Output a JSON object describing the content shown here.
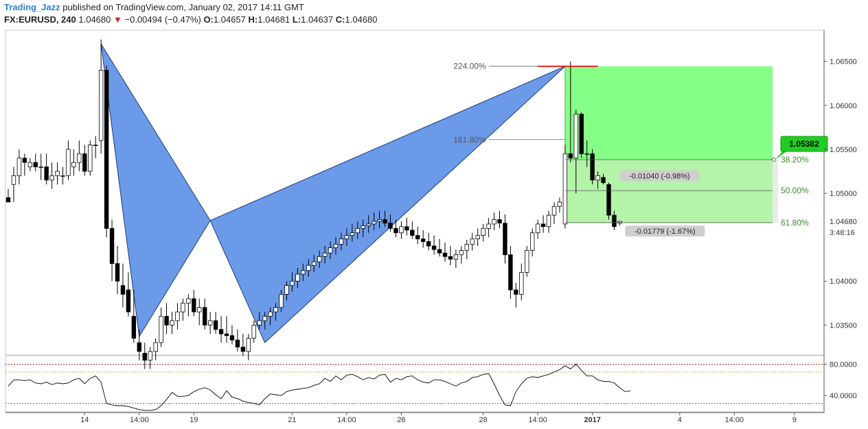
{
  "header": {
    "author": "Trading_Jazz",
    "published": "published on TradingView.com, January 02, 2017 14:11 GMT",
    "symbol": "FX:EURUSD, 240",
    "last": "1.04680",
    "change": "−0.00494 (−0.47%)",
    "o_label": "O:",
    "o": "1.04657",
    "h_label": "H:",
    "h": "1.04681",
    "l_label": "L:",
    "l": "1.04637",
    "c_label": "C:",
    "c": "1.04680",
    "down_arrow": "▼"
  },
  "colors": {
    "pattern_fill": "#6b9ae8",
    "target_zone_dark": "#7fff7f",
    "target_zone_light": "#b4f4a8",
    "candle_down": "#000000",
    "candle_up": "#ffffff",
    "price_tag": "#22cc22",
    "rsi_line": "#000000",
    "red_level": "#e02020"
  },
  "chart_data": {
    "type": "candlestick",
    "title": "",
    "y_axis": {
      "min": 1.033,
      "max": 1.067,
      "ticks": [
        1.065,
        1.06,
        1.055,
        1.05,
        1.04,
        1.035
      ],
      "tick_labels": [
        "1.06500",
        "1.06000",
        "1.05500",
        "1.05000",
        "1.04000",
        "1.03500"
      ],
      "last_price_label": "1.04680",
      "countdown": "3:48:16"
    },
    "x_axis": {
      "labels": [
        {
          "text": "14",
          "bar": 14
        },
        {
          "text": "14:00",
          "bar": 24
        },
        {
          "text": "19",
          "bar": 34
        },
        {
          "text": "21",
          "bar": 52
        },
        {
          "text": "14:00",
          "bar": 62
        },
        {
          "text": "26",
          "bar": 72
        },
        {
          "text": "28",
          "bar": 87
        },
        {
          "text": "14:00",
          "bar": 97
        },
        {
          "text": "2017",
          "bar": 107,
          "bold": true
        },
        {
          "text": "4",
          "bar": 123
        },
        {
          "text": "14:00",
          "bar": 133
        },
        {
          "text": "9",
          "bar": 144
        }
      ]
    },
    "candles": [
      [
        1.0495,
        1.0505,
        1.049,
        1.049
      ],
      [
        1.051,
        1.053,
        1.049,
        1.052
      ],
      [
        1.052,
        1.055,
        1.051,
        1.054
      ],
      [
        1.054,
        1.0545,
        1.052,
        1.0535
      ],
      [
        1.053,
        1.054,
        1.0525,
        1.0535
      ],
      [
        1.0535,
        1.0545,
        1.0525,
        1.053
      ],
      [
        1.053,
        1.0545,
        1.0515,
        1.053
      ],
      [
        1.053,
        1.0545,
        1.051,
        1.0515
      ],
      [
        1.0515,
        1.0535,
        1.0505,
        1.052
      ],
      [
        1.052,
        1.0535,
        1.051,
        1.0525
      ],
      [
        1.052,
        1.053,
        1.051,
        1.052
      ],
      [
        1.052,
        1.056,
        1.0515,
        1.055
      ],
      [
        1.053,
        1.055,
        1.052,
        1.0535
      ],
      [
        1.0535,
        1.056,
        1.0525,
        1.0545
      ],
      [
        1.0545,
        1.0555,
        1.052,
        1.0525
      ],
      [
        1.0525,
        1.056,
        1.052,
        1.0555
      ],
      [
        1.0555,
        1.0565,
        1.054,
        1.0555
      ],
      [
        1.056,
        1.0675,
        1.0545,
        1.064
      ],
      [
        1.064,
        1.0645,
        1.045,
        1.046
      ],
      [
        1.046,
        1.047,
        1.04,
        1.042
      ],
      [
        1.042,
        1.044,
        1.0385,
        1.04
      ],
      [
        1.0395,
        1.042,
        1.037,
        1.0385
      ],
      [
        1.039,
        1.041,
        1.036,
        1.0365
      ],
      [
        1.036,
        1.039,
        1.033,
        1.0335
      ],
      [
        1.033,
        1.0345,
        1.031,
        1.032
      ],
      [
        1.0318,
        1.033,
        1.03,
        1.031
      ],
      [
        1.031,
        1.0325,
        1.03,
        1.032
      ],
      [
        1.032,
        1.0335,
        1.031,
        1.033
      ],
      [
        1.033,
        1.037,
        1.0325,
        1.036
      ],
      [
        1.036,
        1.0375,
        1.034,
        1.035
      ],
      [
        1.035,
        1.0365,
        1.034,
        1.0355
      ],
      [
        1.0355,
        1.0375,
        1.0345,
        1.0365
      ],
      [
        1.0365,
        1.038,
        1.0355,
        1.0375
      ],
      [
        1.0375,
        1.0385,
        1.036,
        1.038
      ],
      [
        1.038,
        1.039,
        1.036,
        1.0365
      ],
      [
        1.0365,
        1.038,
        1.035,
        1.037
      ],
      [
        1.037,
        1.038,
        1.0345,
        1.035
      ],
      [
        1.035,
        1.0365,
        1.034,
        1.0355
      ],
      [
        1.0355,
        1.0365,
        1.034,
        1.0345
      ],
      [
        1.0345,
        1.036,
        1.033,
        1.034
      ],
      [
        1.034,
        1.036,
        1.033,
        1.0338
      ],
      [
        1.0338,
        1.035,
        1.0328,
        1.0333
      ],
      [
        1.0333,
        1.0345,
        1.032,
        1.0325
      ],
      [
        1.0325,
        1.034,
        1.0315,
        1.032
      ],
      [
        1.032,
        1.034,
        1.031,
        1.0335
      ],
      [
        1.0335,
        1.0355,
        1.033,
        1.035
      ],
      [
        1.035,
        1.0365,
        1.0345,
        1.0355
      ],
      [
        1.0355,
        1.0365,
        1.0345,
        1.036
      ],
      [
        1.036,
        1.037,
        1.035,
        1.0365
      ],
      [
        1.0365,
        1.0375,
        1.0355,
        1.037
      ],
      [
        1.037,
        1.039,
        1.0365,
        1.0385
      ],
      [
        1.0385,
        1.04,
        1.0378,
        1.0395
      ],
      [
        1.0395,
        1.041,
        1.0388,
        1.04
      ],
      [
        1.04,
        1.0415,
        1.0392,
        1.0408
      ],
      [
        1.0408,
        1.042,
        1.04,
        1.0412
      ],
      [
        1.0412,
        1.0425,
        1.0405,
        1.0418
      ],
      [
        1.0418,
        1.043,
        1.041,
        1.0422
      ],
      [
        1.0422,
        1.0435,
        1.0415,
        1.0428
      ],
      [
        1.0428,
        1.044,
        1.042,
        1.0432
      ],
      [
        1.0432,
        1.0445,
        1.0425,
        1.0438
      ],
      [
        1.0438,
        1.045,
        1.043,
        1.0442
      ],
      [
        1.0442,
        1.0455,
        1.0435,
        1.0448
      ],
      [
        1.0448,
        1.046,
        1.044,
        1.0452
      ],
      [
        1.0452,
        1.0465,
        1.0445,
        1.0455
      ],
      [
        1.0455,
        1.0468,
        1.0448,
        1.046
      ],
      [
        1.046,
        1.047,
        1.045,
        1.0463
      ],
      [
        1.0463,
        1.0475,
        1.0455,
        1.0465
      ],
      [
        1.0465,
        1.0478,
        1.0458,
        1.0468
      ],
      [
        1.0468,
        1.048,
        1.046,
        1.047
      ],
      [
        1.047,
        1.048,
        1.0462,
        1.0466
      ],
      [
        1.0466,
        1.0476,
        1.0456,
        1.046
      ],
      [
        1.046,
        1.047,
        1.045,
        1.0455
      ],
      [
        1.0455,
        1.0468,
        1.0448,
        1.0462
      ],
      [
        1.0462,
        1.0472,
        1.0452,
        1.0458
      ],
      [
        1.0458,
        1.0468,
        1.0448,
        1.0452
      ],
      [
        1.0452,
        1.0462,
        1.0442,
        1.0448
      ],
      [
        1.0448,
        1.0458,
        1.0438,
        1.0445
      ],
      [
        1.0445,
        1.0455,
        1.0435,
        1.044
      ],
      [
        1.044,
        1.0452,
        1.043,
        1.0436
      ],
      [
        1.0436,
        1.0448,
        1.0428,
        1.0432
      ],
      [
        1.0432,
        1.0444,
        1.0422,
        1.0428
      ],
      [
        1.0428,
        1.044,
        1.0418,
        1.0425
      ],
      [
        1.0425,
        1.0436,
        1.0415,
        1.043
      ],
      [
        1.043,
        1.044,
        1.042,
        1.0435
      ],
      [
        1.0435,
        1.0447,
        1.0425,
        1.0442
      ],
      [
        1.0442,
        1.0455,
        1.0435,
        1.0448
      ],
      [
        1.0448,
        1.046,
        1.044,
        1.0452
      ],
      [
        1.0452,
        1.0465,
        1.0445,
        1.046
      ],
      [
        1.046,
        1.0472,
        1.045,
        1.0465
      ],
      [
        1.0465,
        1.0478,
        1.0458,
        1.047
      ],
      [
        1.047,
        1.048,
        1.046,
        1.0466
      ],
      [
        1.0466,
        1.0476,
        1.042,
        1.043
      ],
      [
        1.043,
        1.044,
        1.038,
        1.039
      ],
      [
        1.039,
        1.0398,
        1.037,
        1.0385
      ],
      [
        1.0385,
        1.042,
        1.0378,
        1.041
      ],
      [
        1.041,
        1.044,
        1.0405,
        1.0435
      ],
      [
        1.0435,
        1.046,
        1.0428,
        1.0455
      ],
      [
        1.0455,
        1.047,
        1.0448,
        1.0465
      ],
      [
        1.0465,
        1.0475,
        1.0455,
        1.0462
      ],
      [
        1.0462,
        1.048,
        1.0455,
        1.0475
      ],
      [
        1.0475,
        1.049,
        1.0465,
        1.0485
      ],
      [
        1.0485,
        1.0495,
        1.0478,
        1.049
      ],
      [
        1.0465,
        1.0555,
        1.046,
        1.0545
      ],
      [
        1.0545,
        1.065,
        1.0535,
        1.054
      ],
      [
        1.054,
        1.0595,
        1.05,
        1.059
      ],
      [
        1.059,
        1.0592,
        1.054,
        1.0545
      ],
      [
        1.0545,
        1.056,
        1.053,
        1.0545
      ],
      [
        1.0545,
        1.055,
        1.051,
        1.0515
      ],
      [
        1.0515,
        1.0525,
        1.0505,
        1.052
      ],
      [
        1.0518,
        1.0522,
        1.051,
        1.0512
      ],
      [
        1.051,
        1.0512,
        1.047,
        1.0475
      ],
      [
        1.0475,
        1.048,
        1.0458,
        1.0462
      ],
      [
        1.0466,
        1.0468,
        1.0463,
        1.0468
      ]
    ],
    "fibonacci": [
      {
        "label": "224.00%",
        "price": 1.06445
      },
      {
        "label": "161.80%",
        "price": 1.0561
      },
      {
        "label": "38.20%",
        "price": 1.05382
      },
      {
        "label": "50.00%",
        "price": 1.0503
      },
      {
        "label": "61.80%",
        "price": 1.04665
      }
    ],
    "measure_labels": [
      {
        "text": "-0.01040 (-0.98%)",
        "price": 1.052
      },
      {
        "text": "-0.01779 (-1.67%)",
        "price": 1.0457
      }
    ],
    "target_price_tag": "1.05382",
    "rsi": {
      "y_min": 20,
      "y_max": 90,
      "ticks": [
        80,
        40
      ],
      "tick_labels": [
        "80.0000",
        "40.0000"
      ],
      "levels": [
        80,
        70,
        30
      ],
      "values": [
        52,
        60,
        60,
        59,
        60,
        56,
        55,
        57,
        54,
        56,
        55,
        56,
        60,
        62,
        55,
        62,
        65,
        57,
        30,
        28,
        27,
        27,
        26,
        24,
        22,
        21,
        21,
        22,
        27,
        35,
        44,
        39,
        39,
        40,
        45,
        48,
        50,
        47,
        41,
        36,
        46,
        38,
        36,
        33,
        31,
        30,
        28,
        36,
        42,
        41,
        40,
        45,
        47,
        48,
        49,
        50,
        53,
        55,
        62,
        58,
        65,
        60,
        66,
        67,
        64,
        60,
        63,
        61,
        66,
        67,
        57,
        62,
        60,
        64,
        65,
        60,
        57,
        56,
        60,
        60,
        58,
        55,
        52,
        56,
        58,
        63,
        64,
        67,
        68,
        55,
        40,
        28,
        27,
        45,
        55,
        62,
        64,
        63,
        65,
        67,
        70,
        73,
        78,
        74,
        80,
        72,
        65,
        65,
        60,
        58,
        58,
        56,
        50,
        45,
        46
      ]
    }
  }
}
